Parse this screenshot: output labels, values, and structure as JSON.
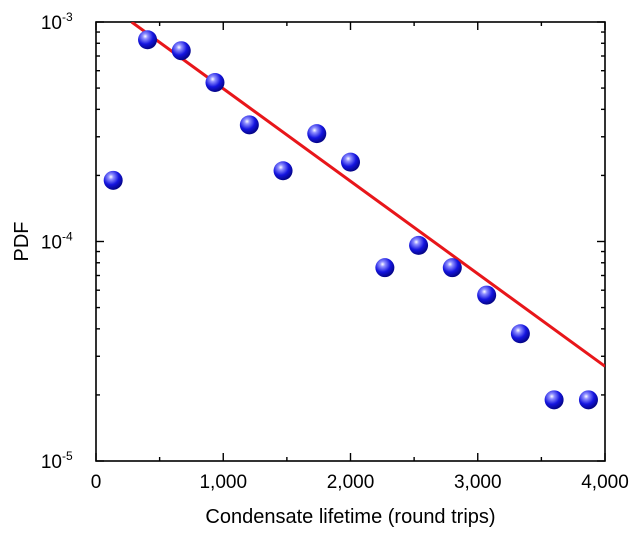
{
  "chart_data": {
    "type": "scatter",
    "xlabel": "Condensate lifetime (round trips)",
    "ylabel": "PDF",
    "xlim": [
      0,
      4000
    ],
    "ylim": [
      1e-05,
      0.001
    ],
    "yscale": "log",
    "grid": false,
    "x_ticks": [
      {
        "value": 0,
        "label": "0"
      },
      {
        "value": 1000,
        "label": "1,000"
      },
      {
        "value": 2000,
        "label": "2,000"
      },
      {
        "value": 3000,
        "label": "3,000"
      },
      {
        "value": 4000,
        "label": "4,000"
      }
    ],
    "y_ticks": [
      {
        "value": 1e-05,
        "base": "10",
        "exp": "-5"
      },
      {
        "value": 0.0001,
        "base": "10",
        "exp": "-4"
      },
      {
        "value": 0.001,
        "base": "10",
        "exp": "-3"
      }
    ],
    "series": [
      {
        "kind": "scatter",
        "color": "#1a1adb",
        "x": [
          135,
          405,
          670,
          935,
          1205,
          1470,
          1735,
          2000,
          2270,
          2535,
          2800,
          3070,
          3335,
          3600,
          3870
        ],
        "y": [
          0.00019,
          0.00083,
          0.00074,
          0.00053,
          0.00034,
          0.00021,
          0.00031,
          0.00023,
          7.6e-05,
          9.6e-05,
          7.6e-05,
          5.7e-05,
          3.8e-05,
          1.9e-05,
          1.9e-05
        ]
      },
      {
        "kind": "line",
        "color": "#e8161a",
        "x": [
          280,
          4000
        ],
        "y": [
          0.001,
          2.7e-05
        ]
      }
    ]
  }
}
